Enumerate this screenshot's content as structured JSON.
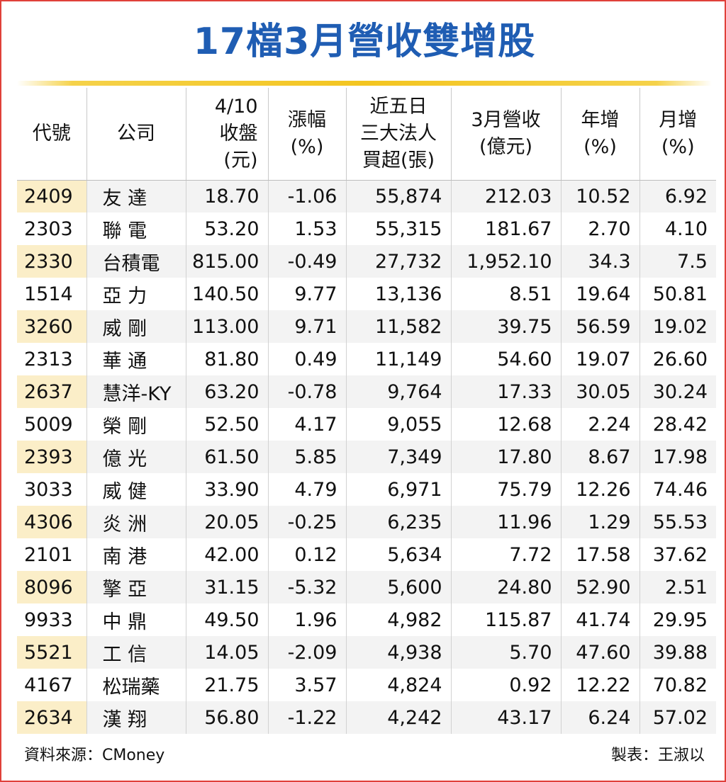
{
  "title": "17檔3月營收雙增股",
  "headers": {
    "code": "代號",
    "company": "公司",
    "close": [
      "4/10",
      "收盤",
      "(元)"
    ],
    "change": [
      "漲幅",
      "(%)"
    ],
    "net_buy": [
      "近五日",
      "三大法人",
      "買超(張)"
    ],
    "revenue": [
      "3月營收",
      "(億元)"
    ],
    "yoy": [
      "年增",
      "(%)"
    ],
    "mom": [
      "月增",
      "(%)"
    ]
  },
  "rows": [
    {
      "code": "2409",
      "company": "友 達",
      "close": "18.70",
      "change": "-1.06",
      "net_buy": "55,874",
      "revenue": "212.03",
      "yoy": "10.52",
      "mom": "6.92"
    },
    {
      "code": "2303",
      "company": "聯 電",
      "close": "53.20",
      "change": "1.53",
      "net_buy": "55,315",
      "revenue": "181.67",
      "yoy": "2.70",
      "mom": "4.10"
    },
    {
      "code": "2330",
      "company": "台積電",
      "close": "815.00",
      "change": "-0.49",
      "net_buy": "27,732",
      "revenue": "1,952.10",
      "yoy": "34.3",
      "mom": "7.5"
    },
    {
      "code": "1514",
      "company": "亞 力",
      "close": "140.50",
      "change": "9.77",
      "net_buy": "13,136",
      "revenue": "8.51",
      "yoy": "19.64",
      "mom": "50.81"
    },
    {
      "code": "3260",
      "company": "威 剛",
      "close": "113.00",
      "change": "9.71",
      "net_buy": "11,582",
      "revenue": "39.75",
      "yoy": "56.59",
      "mom": "19.02"
    },
    {
      "code": "2313",
      "company": "華 通",
      "close": "81.80",
      "change": "0.49",
      "net_buy": "11,149",
      "revenue": "54.60",
      "yoy": "19.07",
      "mom": "26.60"
    },
    {
      "code": "2637",
      "company": "慧洋-KY",
      "close": "63.20",
      "change": "-0.78",
      "net_buy": "9,764",
      "revenue": "17.33",
      "yoy": "30.05",
      "mom": "30.24"
    },
    {
      "code": "5009",
      "company": "榮 剛",
      "close": "52.50",
      "change": "4.17",
      "net_buy": "9,055",
      "revenue": "12.68",
      "yoy": "2.24",
      "mom": "28.42"
    },
    {
      "code": "2393",
      "company": "億 光",
      "close": "61.50",
      "change": "5.85",
      "net_buy": "7,349",
      "revenue": "17.80",
      "yoy": "8.67",
      "mom": "17.98"
    },
    {
      "code": "3033",
      "company": "威 健",
      "close": "33.90",
      "change": "4.79",
      "net_buy": "6,971",
      "revenue": "75.79",
      "yoy": "12.26",
      "mom": "74.46"
    },
    {
      "code": "4306",
      "company": "炎 洲",
      "close": "20.05",
      "change": "-0.25",
      "net_buy": "6,235",
      "revenue": "11.96",
      "yoy": "1.29",
      "mom": "55.53"
    },
    {
      "code": "2101",
      "company": "南 港",
      "close": "42.00",
      "change": "0.12",
      "net_buy": "5,634",
      "revenue": "7.72",
      "yoy": "17.58",
      "mom": "37.62"
    },
    {
      "code": "8096",
      "company": "擎 亞",
      "close": "31.15",
      "change": "-5.32",
      "net_buy": "5,600",
      "revenue": "24.80",
      "yoy": "52.90",
      "mom": "2.51"
    },
    {
      "code": "9933",
      "company": "中 鼎",
      "close": "49.50",
      "change": "1.96",
      "net_buy": "4,982",
      "revenue": "115.87",
      "yoy": "41.74",
      "mom": "29.95"
    },
    {
      "code": "5521",
      "company": "工 信",
      "close": "14.05",
      "change": "-2.09",
      "net_buy": "4,938",
      "revenue": "5.70",
      "yoy": "47.60",
      "mom": "39.88"
    },
    {
      "code": "4167",
      "company": "松瑞藥",
      "close": "21.75",
      "change": "3.57",
      "net_buy": "4,824",
      "revenue": "0.92",
      "yoy": "12.22",
      "mom": "70.82"
    },
    {
      "code": "2634",
      "company": "漢 翔",
      "close": "56.80",
      "change": "-1.22",
      "net_buy": "4,242",
      "revenue": "43.17",
      "yoy": "6.24",
      "mom": "57.02"
    }
  ],
  "footer": {
    "source": "資料來源：CMoney",
    "maker": "製表：王淑以"
  },
  "colors": {
    "title": "#1f5db3",
    "border": "#e0403a",
    "rule": "#f3c520",
    "code_highlight": "#fbeec8",
    "row_shade": "#f3f3f3"
  }
}
